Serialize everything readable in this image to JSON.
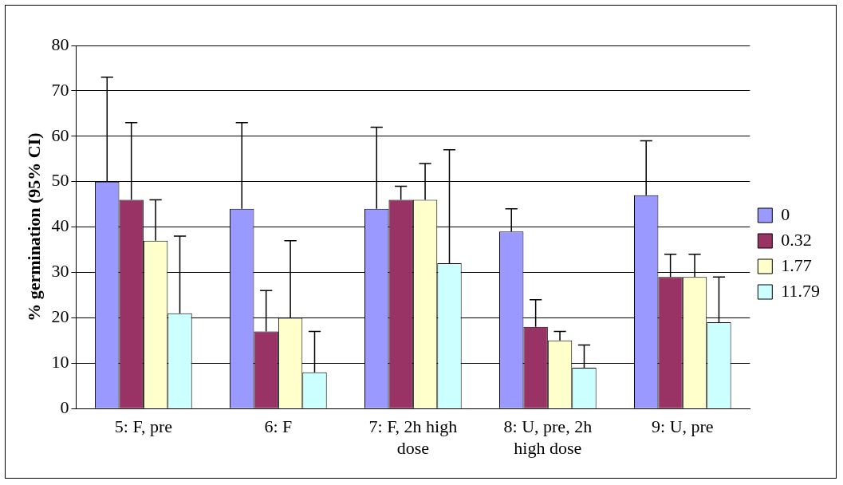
{
  "chart_data": {
    "type": "bar",
    "ylabel": "% germination (95% CI)",
    "categories": [
      "5: F, pre",
      "6: F",
      "7: F, 2h high dose",
      "8: U, pre, 2h high dose",
      "9: U, pre"
    ],
    "series": [
      {
        "name": "0",
        "color": "#9999ff",
        "values": [
          50,
          44,
          44,
          39,
          47
        ],
        "errors": [
          [
            50,
            73
          ],
          [
            44,
            63
          ],
          [
            44,
            62
          ],
          [
            39,
            44
          ],
          [
            47,
            59
          ]
        ]
      },
      {
        "name": "0.32",
        "color": "#993366",
        "values": [
          46,
          17,
          46,
          18,
          29
        ],
        "errors": [
          [
            46,
            63
          ],
          [
            17,
            26
          ],
          [
            46,
            49
          ],
          [
            18,
            24
          ],
          [
            29,
            34
          ]
        ]
      },
      {
        "name": "1.77",
        "color": "#ffffcc",
        "values": [
          37,
          20,
          46,
          15,
          29
        ],
        "errors": [
          [
            37,
            46
          ],
          [
            20,
            37
          ],
          [
            46,
            54
          ],
          [
            15,
            17
          ],
          [
            29,
            34
          ]
        ]
      },
      {
        "name": "11.79",
        "color": "#ccffff",
        "values": [
          21,
          8,
          32,
          9,
          19
        ],
        "errors": [
          [
            21,
            38
          ],
          [
            8,
            17
          ],
          [
            32,
            57
          ],
          [
            9,
            14
          ],
          [
            19,
            29
          ]
        ]
      }
    ],
    "ylim": [
      0,
      80
    ],
    "yticks": [
      0,
      10,
      20,
      30,
      40,
      50,
      60,
      70,
      80
    ],
    "grid": "y",
    "legend": "right"
  }
}
